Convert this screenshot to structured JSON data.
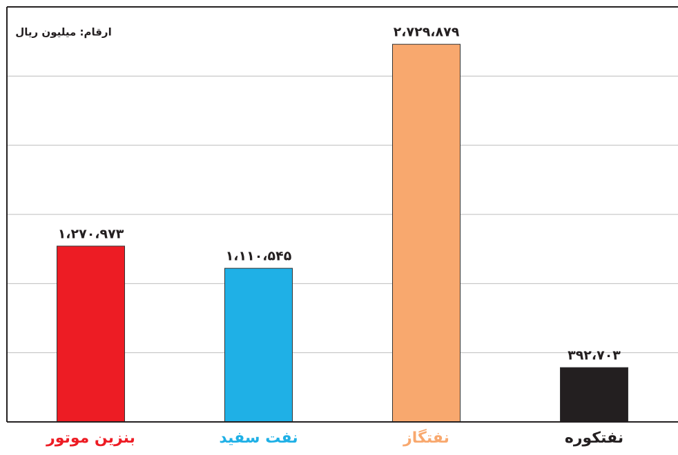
{
  "chart_data": {
    "type": "bar",
    "note": "ارقام: میلیون ریال",
    "categories": [
      "بنزین موتور",
      "نفت سفید",
      "نفتگاز",
      "نفتکوره"
    ],
    "values": [
      1270973,
      1110545,
      2729879,
      392703
    ],
    "value_labels": [
      "۱،۲۷۰،۹۷۳",
      "۱،۱۱۰،۵۴۵",
      "۲،۷۲۹،۸۷۹",
      "۳۹۲،۷۰۳"
    ],
    "colors": [
      "#ed1c24",
      "#1fb0e6",
      "#f8a86e",
      "#231f20"
    ],
    "ylim": [
      0,
      3000000
    ],
    "yticks": [
      500000,
      1000000,
      1500000,
      2000000,
      2500000
    ],
    "grid": true
  }
}
